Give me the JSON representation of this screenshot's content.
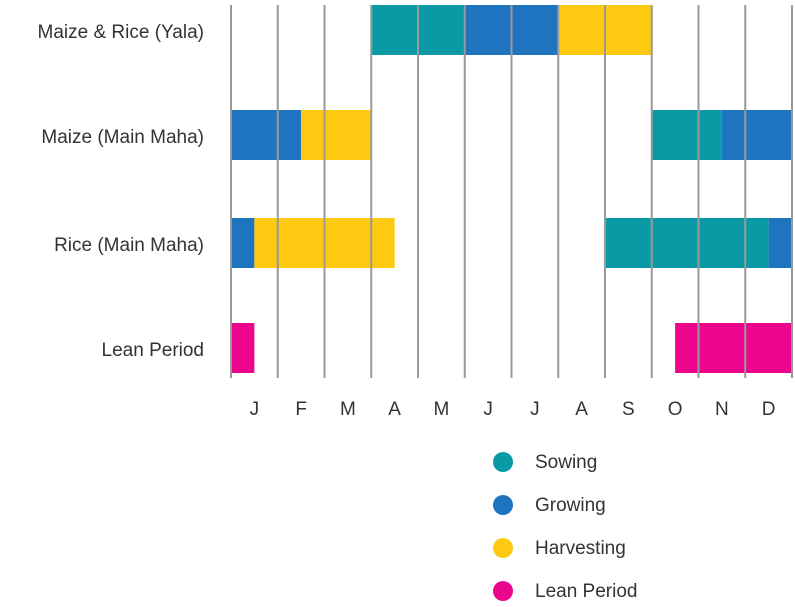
{
  "chart_data": {
    "type": "gantt",
    "rows": [
      "Maize & Rice (Yala)",
      "Maize (Main Maha)",
      "Rice (Main Maha)",
      "Lean Period"
    ],
    "categories": [
      "J",
      "F",
      "M",
      "A",
      "M",
      "J",
      "J",
      "A",
      "S",
      "O",
      "N",
      "D"
    ],
    "xlim": [
      0,
      12
    ],
    "xticks": [
      0,
      1,
      2,
      3,
      4,
      5,
      6,
      7,
      8,
      9,
      10,
      11,
      12
    ],
    "grid": true,
    "series": [
      {
        "name": "Sowing",
        "color": "#0a9aa5",
        "segments": [
          {
            "row": 0,
            "start": 3,
            "end": 5
          },
          {
            "row": 1,
            "start": 9,
            "end": 10.5
          },
          {
            "row": 2,
            "start": 8,
            "end": 11.5
          }
        ]
      },
      {
        "name": "Growing",
        "color": "#1f74c0",
        "segments": [
          {
            "row": 0,
            "start": 5,
            "end": 7
          },
          {
            "row": 1,
            "start": 0,
            "end": 1.5
          },
          {
            "row": 1,
            "start": 10.5,
            "end": 12
          },
          {
            "row": 2,
            "start": 0,
            "end": 0.5
          },
          {
            "row": 2,
            "start": 11.5,
            "end": 12
          }
        ]
      },
      {
        "name": "Harvesting",
        "color": "#fec911",
        "segments": [
          {
            "row": 0,
            "start": 7,
            "end": 9
          },
          {
            "row": 1,
            "start": 1.5,
            "end": 3
          },
          {
            "row": 2,
            "start": 0.5,
            "end": 3.5
          }
        ]
      },
      {
        "name": "Lean Period",
        "color": "#ec068d",
        "segments": [
          {
            "row": 3,
            "start": 0,
            "end": 0.5
          },
          {
            "row": 3,
            "start": 9.5,
            "end": 12
          }
        ]
      }
    ]
  }
}
